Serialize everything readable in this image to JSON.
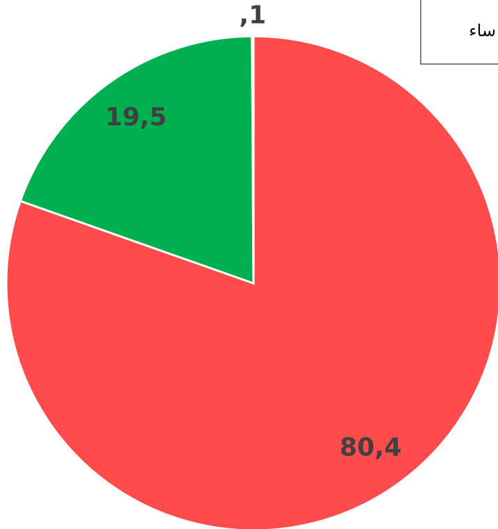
{
  "chart_data": {
    "type": "pie",
    "values": [
      80.4,
      19.5,
      0.1
    ],
    "value_labels": [
      "80,4",
      "19,5",
      ",1"
    ],
    "colors": [
      "#ff4b4b",
      "#00b050",
      "#7f7f7f"
    ],
    "legend_label": "ساء"
  }
}
